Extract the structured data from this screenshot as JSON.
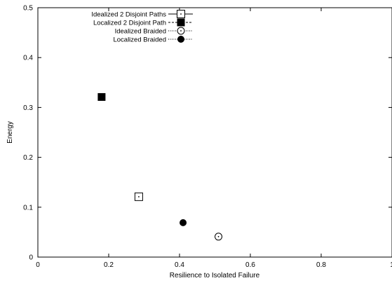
{
  "chart_data": {
    "type": "scatter",
    "title": "",
    "xlabel": "Resilience to Isolated Failure",
    "ylabel": "Energy",
    "xlim": [
      0,
      1
    ],
    "ylim": [
      0,
      0.5
    ],
    "x_ticks": [
      0,
      0.2,
      0.4,
      0.6,
      0.8,
      1
    ],
    "y_ticks": [
      0,
      0.1,
      0.2,
      0.3,
      0.4,
      0.5
    ],
    "x_tick_labels": [
      "0",
      "0.2",
      "0.4",
      "0.6",
      "0.8",
      "1"
    ],
    "y_tick_labels": [
      "0",
      "0.1",
      "0.2",
      "0.3",
      "0.4",
      "0.5"
    ],
    "grid": false,
    "legend_position": "top-center",
    "series": [
      {
        "name": "Idealized 2 Disjoint Paths",
        "marker": "open-square",
        "line": "solid",
        "points": [
          {
            "x": 0.285,
            "y": 0.121
          }
        ]
      },
      {
        "name": "Localized 2 Disjoint Path",
        "marker": "filled-square",
        "line": "dashed",
        "points": [
          {
            "x": 0.18,
            "y": 0.321
          }
        ]
      },
      {
        "name": "Idealized Braided",
        "marker": "open-circle",
        "line": "dotted",
        "points": [
          {
            "x": 0.51,
            "y": 0.041
          }
        ]
      },
      {
        "name": "Localized Braided",
        "marker": "filled-circle",
        "line": "dotted",
        "points": [
          {
            "x": 0.41,
            "y": 0.069
          }
        ]
      }
    ]
  }
}
